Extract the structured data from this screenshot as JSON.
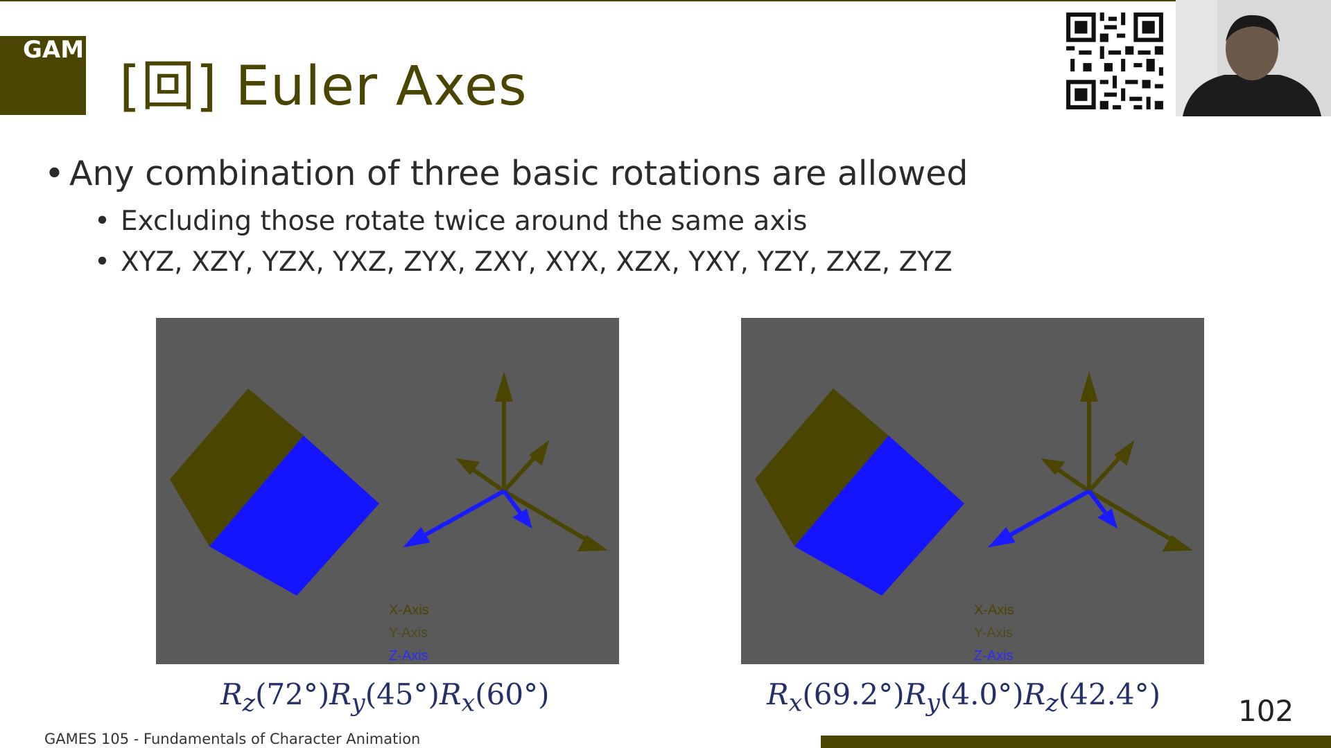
{
  "header": {
    "logo_text": "GAMES",
    "title": "[回] Euler Axes"
  },
  "bullets": {
    "main": "Any combination of three basic rotations are allowed",
    "sub": [
      "Excluding those rotate twice around the same axis",
      "XYZ, XZY, YZX, YXZ, ZYX, ZXY, XYX, XZX, YXY, YZY, ZXZ, ZYZ"
    ]
  },
  "figures": [
    {
      "legend": [
        "X-Axis",
        "Y-Axis",
        "Z-Axis"
      ],
      "caption": {
        "r1": "R",
        "s1": "z",
        "a1": "(72°)",
        "r2": "R",
        "s2": "y",
        "a2": "(45°)",
        "r3": "R",
        "s3": "x",
        "a3": "(60°)"
      }
    },
    {
      "legend": [
        "X-Axis",
        "Y-Axis",
        "Z-Axis"
      ],
      "caption": {
        "r1": "R",
        "s1": "x",
        "a1": "(69.2°)",
        "r2": "R",
        "s2": "y",
        "a2": "(4.0°)",
        "r3": "R",
        "s3": "z",
        "a3": "(42.4°)"
      }
    }
  ],
  "footer": {
    "course": "GAMES 105 - Fundamentals of Character Animation",
    "page_number": "102"
  },
  "colors": {
    "accent": "#4a4500",
    "cube_side": "#4a4500",
    "cube_face": "#1414ff",
    "panel_bg": "#5a5a5a",
    "z_axis": "#1a1aff",
    "formula": "#25306b"
  }
}
